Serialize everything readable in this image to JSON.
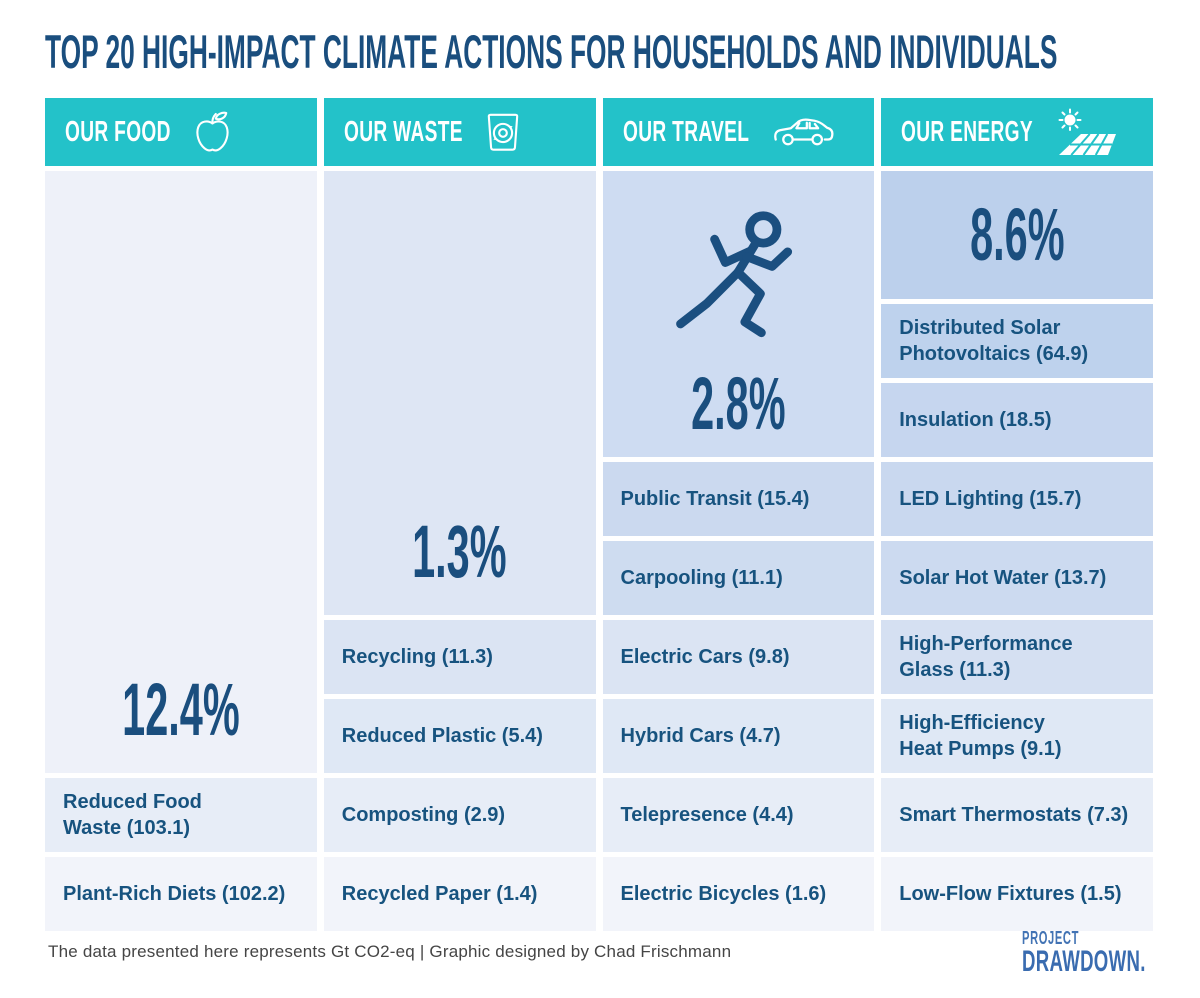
{
  "title": "TOP 20 HIGH-IMPACT CLIMATE ACTIONS FOR HOUSEHOLDS AND INDIVIDUALS",
  "colors": {
    "header_teal": "#23C2C9",
    "title_navy": "#1A4E7E",
    "label_navy": "#17537F",
    "footer_gray": "#454545",
    "logo_blue": "#3A6CB0",
    "background": "#FFFFFF"
  },
  "columns": [
    {
      "id": "food",
      "header_label": "OUR FOOD",
      "header_icon": "apple-icon",
      "total_pct": "12.4%",
      "big_block_bands": 7,
      "big_block_color": "#EEF1F9",
      "big_block_icon": null,
      "items": [
        {
          "label": "Reduced Food\nWaste (103.1)",
          "color": "#E7EDF7"
        },
        {
          "label": "Plant-Rich Diets (102.2)",
          "color": "#F2F4FA"
        }
      ]
    },
    {
      "id": "waste",
      "header_label": "OUR WASTE",
      "header_icon": "recycle-bin-icon",
      "total_pct": "1.3%",
      "big_block_bands": 5,
      "big_block_color": "#DEE6F4",
      "big_block_icon": null,
      "items": [
        {
          "label": "Recycling (11.3)",
          "color": "#DBE4F3"
        },
        {
          "label": "Reduced Plastic (5.4)",
          "color": "#DFE8F5"
        },
        {
          "label": "Composting (2.9)",
          "color": "#E7EDF7"
        },
        {
          "label": "Recycled Paper (1.4)",
          "color": "#F2F4FA"
        }
      ]
    },
    {
      "id": "travel",
      "header_label": "OUR TRAVEL",
      "header_icon": "car-icon",
      "total_pct": "2.8%",
      "big_block_bands": 3,
      "big_block_color": "#CEDCF2",
      "big_block_icon": "runner-icon",
      "items": [
        {
          "label": "Public Transit (15.4)",
          "color": "#CBD9EF"
        },
        {
          "label": "Carpooling (11.1)",
          "color": "#CEDCF0"
        },
        {
          "label": "Electric Cars (9.8)",
          "color": "#DBE4F3"
        },
        {
          "label": "Hybrid Cars (4.7)",
          "color": "#DFE8F5"
        },
        {
          "label": "Telepresence (4.4)",
          "color": "#E7EDF7"
        },
        {
          "label": "Electric Bicycles (1.6)",
          "color": "#F2F4FA"
        }
      ]
    },
    {
      "id": "energy",
      "header_label": "OUR ENERGY",
      "header_icon": "solar-panel-icon",
      "total_pct": "8.6%",
      "big_block_bands": 1,
      "big_block_color": "#BCD0EC",
      "big_block_icon": null,
      "items": [
        {
          "label": "Distributed Solar\nPhotovoltaics (64.9)",
          "color": "#BED2ED"
        },
        {
          "label": "Insulation (18.5)",
          "color": "#C6D6EF"
        },
        {
          "label": "LED Lighting (15.7)",
          "color": "#C9D8EF"
        },
        {
          "label": "Solar Hot Water (13.7)",
          "color": "#CCDAF0"
        },
        {
          "label": "High-Performance\nGlass (11.3)",
          "color": "#D5E0F2"
        },
        {
          "label": "High-Efficiency\nHeat Pumps (9.1)",
          "color": "#DFE8F5"
        },
        {
          "label": "Smart Thermostats (7.3)",
          "color": "#E7EDF7"
        },
        {
          "label": "Low-Flow Fixtures (1.5)",
          "color": "#F2F4FA"
        }
      ]
    }
  ],
  "footer": {
    "note": "The data presented here represents Gt CO2-eq |  Graphic designed by Chad Frischmann",
    "logo_top": "PROJECT",
    "logo_bottom": "DRAWDOWN."
  },
  "chart_data": {
    "type": "table",
    "title": "Top 20 High-Impact Climate Actions for Households and Individuals",
    "unit": "Gt CO2-eq",
    "categories": [
      "Our Food",
      "Our Waste",
      "Our Travel",
      "Our Energy"
    ],
    "category_totals_pct": [
      12.4,
      1.3,
      2.8,
      8.6
    ],
    "series": [
      {
        "name": "Our Food",
        "actions": [
          {
            "action": "Reduced Food Waste",
            "value": 103.1
          },
          {
            "action": "Plant-Rich Diets",
            "value": 102.2
          }
        ]
      },
      {
        "name": "Our Waste",
        "actions": [
          {
            "action": "Recycling",
            "value": 11.3
          },
          {
            "action": "Reduced Plastic",
            "value": 5.4
          },
          {
            "action": "Composting",
            "value": 2.9
          },
          {
            "action": "Recycled Paper",
            "value": 1.4
          }
        ]
      },
      {
        "name": "Our Travel",
        "actions": [
          {
            "action": "Public Transit",
            "value": 15.4
          },
          {
            "action": "Carpooling",
            "value": 11.1
          },
          {
            "action": "Electric Cars",
            "value": 9.8
          },
          {
            "action": "Hybrid Cars",
            "value": 4.7
          },
          {
            "action": "Telepresence",
            "value": 4.4
          },
          {
            "action": "Electric Bicycles",
            "value": 1.6
          }
        ]
      },
      {
        "name": "Our Energy",
        "actions": [
          {
            "action": "Distributed Solar Photovoltaics",
            "value": 64.9
          },
          {
            "action": "Insulation",
            "value": 18.5
          },
          {
            "action": "LED Lighting",
            "value": 15.7
          },
          {
            "action": "Solar Hot Water",
            "value": 13.7
          },
          {
            "action": "High-Performance Glass",
            "value": 11.3
          },
          {
            "action": "High-Efficiency Heat Pumps",
            "value": 9.1
          },
          {
            "action": "Smart Thermostats",
            "value": 7.3
          },
          {
            "action": "Low-Flow Fixtures",
            "value": 1.5
          }
        ]
      }
    ]
  }
}
